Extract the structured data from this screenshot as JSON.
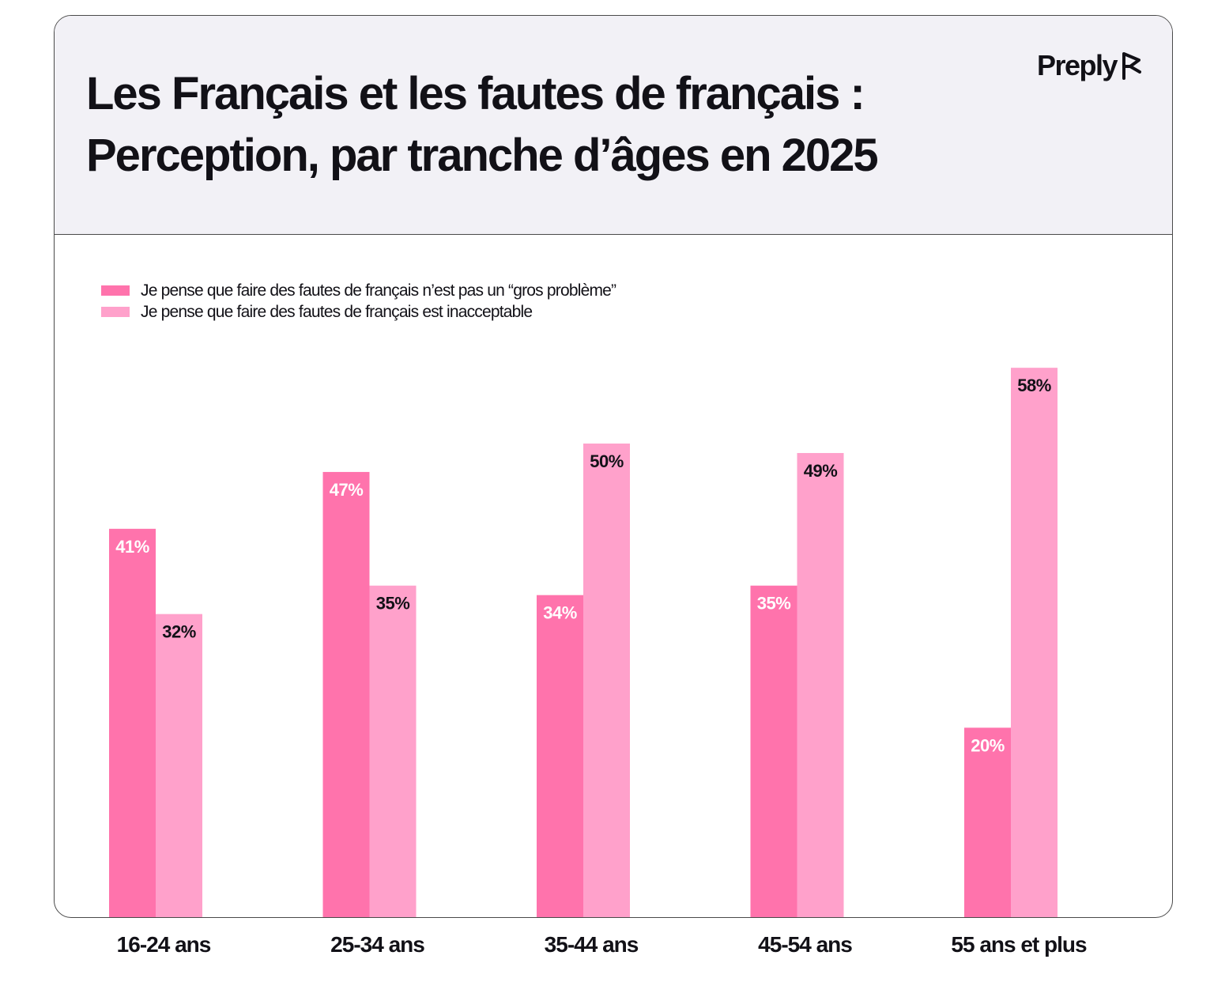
{
  "title_line1": "Les Français et les fautes de français :",
  "title_line2": "Perception, par tranche d’âges en 2025",
  "brand": "Preply",
  "colors": {
    "series1": "#ff73ac",
    "series2": "#ffa1cb",
    "header_bg": "#f2f1f6",
    "text": "#121117"
  },
  "chart_data": {
    "type": "bar",
    "title": "Les Français et les fautes de français : Perception, par tranche d’âges en 2025",
    "categories": [
      "16-24 ans",
      "25-34 ans",
      "35-44 ans",
      "45-54 ans",
      "55 ans et plus"
    ],
    "series": [
      {
        "name": "Je pense que faire des fautes de français n’est pas un “gros problème”",
        "values": [
          41,
          47,
          34,
          35,
          20
        ],
        "labels": [
          "41%",
          "47%",
          "34%",
          "35%",
          "20%"
        ]
      },
      {
        "name": "Je pense que faire des fautes de français est inacceptable",
        "values": [
          32,
          35,
          50,
          49,
          58
        ],
        "labels": [
          "32%",
          "35%",
          "50%",
          "49%",
          "58%"
        ]
      }
    ],
    "ylim": [
      0,
      58
    ],
    "legend_position": "top-left",
    "grid": false
  }
}
